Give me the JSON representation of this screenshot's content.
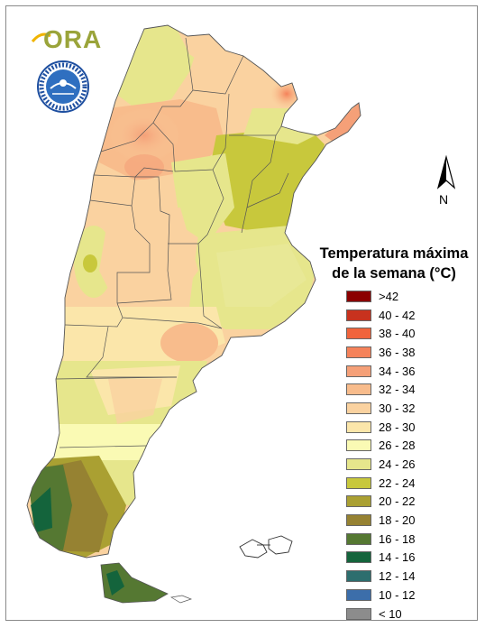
{
  "logo": {
    "text": "ORA"
  },
  "seal": {
    "icon": "smn-seal-icon"
  },
  "north": {
    "label": "N",
    "icon": "north-arrow-icon"
  },
  "legend": {
    "title_line1": "Temperatura máxima",
    "title_line2": "de la semana (°C)",
    "items": [
      {
        "label": ">42",
        "color": "#8b0000"
      },
      {
        "label": "40 - 42",
        "color": "#c8321e"
      },
      {
        "label": "38 - 40",
        "color": "#f0643c"
      },
      {
        "label": "36 - 38",
        "color": "#f5825a"
      },
      {
        "label": "34 - 36",
        "color": "#f5a078"
      },
      {
        "label": "32 - 34",
        "color": "#f8bc8c"
      },
      {
        "label": "30 - 32",
        "color": "#fad2a0"
      },
      {
        "label": "28 - 30",
        "color": "#fbe6aa"
      },
      {
        "label": "26 - 28",
        "color": "#fafab4"
      },
      {
        "label": "24 - 26",
        "color": "#e6e68c"
      },
      {
        "label": "22 - 24",
        "color": "#c8c83c"
      },
      {
        "label": "20 - 22",
        "color": "#aaa032"
      },
      {
        "label": "18 - 20",
        "color": "#968232"
      },
      {
        "label": "16 - 18",
        "color": "#557832"
      },
      {
        "label": "14 - 16",
        "color": "#14643c"
      },
      {
        "label": "12 - 14",
        "color": "#2d6e6e"
      },
      {
        "label": "10 - 12",
        "color": "#3c6eaa"
      },
      {
        "label": "< 10",
        "color": "#8c8c8c"
      }
    ]
  }
}
